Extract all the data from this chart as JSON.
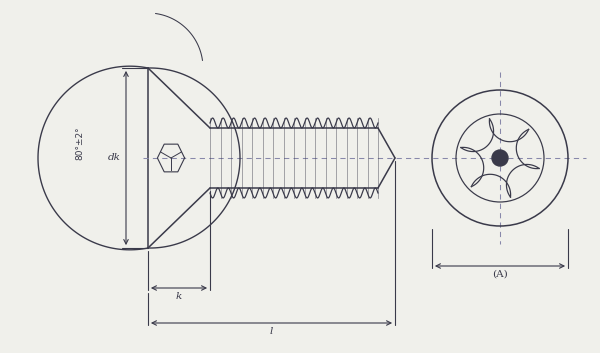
{
  "bg_color": "#f0f0eb",
  "line_color": "#3a3a4a",
  "dim_color": "#3a3a4a",
  "dash_color": "#8888aa",
  "fig_w": 6.0,
  "fig_h": 3.53,
  "label_dk": "dk",
  "label_k": "k",
  "label_l": "l",
  "label_angle": "80°±2°",
  "label_A": "(A)"
}
